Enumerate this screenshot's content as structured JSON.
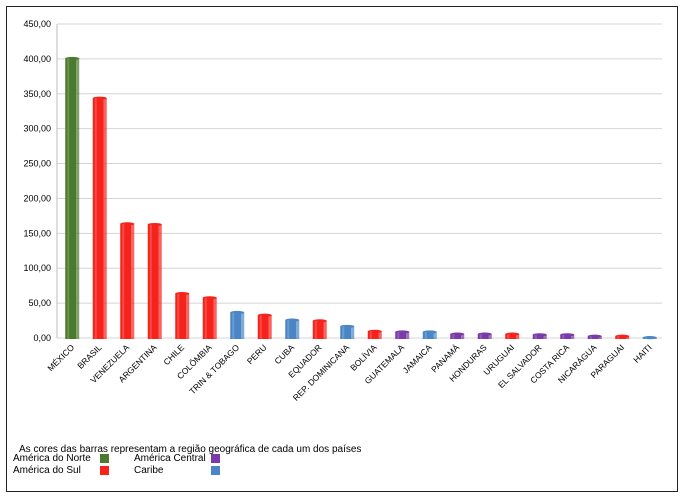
{
  "chart_data": {
    "type": "bar",
    "categories": [
      "MÉXICO",
      "BRASIL",
      "VENEZUELA",
      "ARGENTINA",
      "CHILE",
      "COLÔMBIA",
      "TRIN & TOBAGO",
      "PERU",
      "CUBA",
      "EQUADOR",
      "REP. DOMINICANA",
      "BOLÍVIA",
      "GUATEMALA",
      "JAMAICA",
      "PANAMÁ",
      "HONDURAS",
      "URUGUAI",
      "EL SALVADOR",
      "COSTA RICA",
      "NICARÁGUA",
      "PARAGUAI",
      "HAITI"
    ],
    "values": [
      402,
      345,
      165,
      164,
      65,
      59,
      38,
      34,
      27,
      26,
      18,
      11,
      10,
      10,
      7,
      7,
      7,
      6,
      6,
      4,
      4,
      2
    ],
    "regions": [
      "norte",
      "sul",
      "sul",
      "sul",
      "sul",
      "sul",
      "caribe",
      "sul",
      "caribe",
      "sul",
      "caribe",
      "sul",
      "central",
      "caribe",
      "central",
      "central",
      "sul",
      "central",
      "central",
      "central",
      "sul",
      "caribe"
    ],
    "region_colors": {
      "norte": "#4b7a2e",
      "sul": "#f5231c",
      "central": "#7a3aa8",
      "caribe": "#4a86c6"
    },
    "y_ticks": [
      "0,00",
      "50,00",
      "100,00",
      "150,00",
      "200,00",
      "250,00",
      "300,00",
      "350,00",
      "400,00",
      "450,00"
    ],
    "ylim": [
      0,
      450
    ],
    "grid": true
  },
  "legend": {
    "note": "As cores das barras representam a região geográfica de cada um dos países",
    "items": [
      {
        "label": "América do Norte",
        "color": "#4b7a2e"
      },
      {
        "label": "América Central",
        "color": "#7a3aa8"
      },
      {
        "label": "América do Sul",
        "color": "#f5231c"
      },
      {
        "label": "Caribe",
        "color": "#4a86c6"
      }
    ]
  }
}
